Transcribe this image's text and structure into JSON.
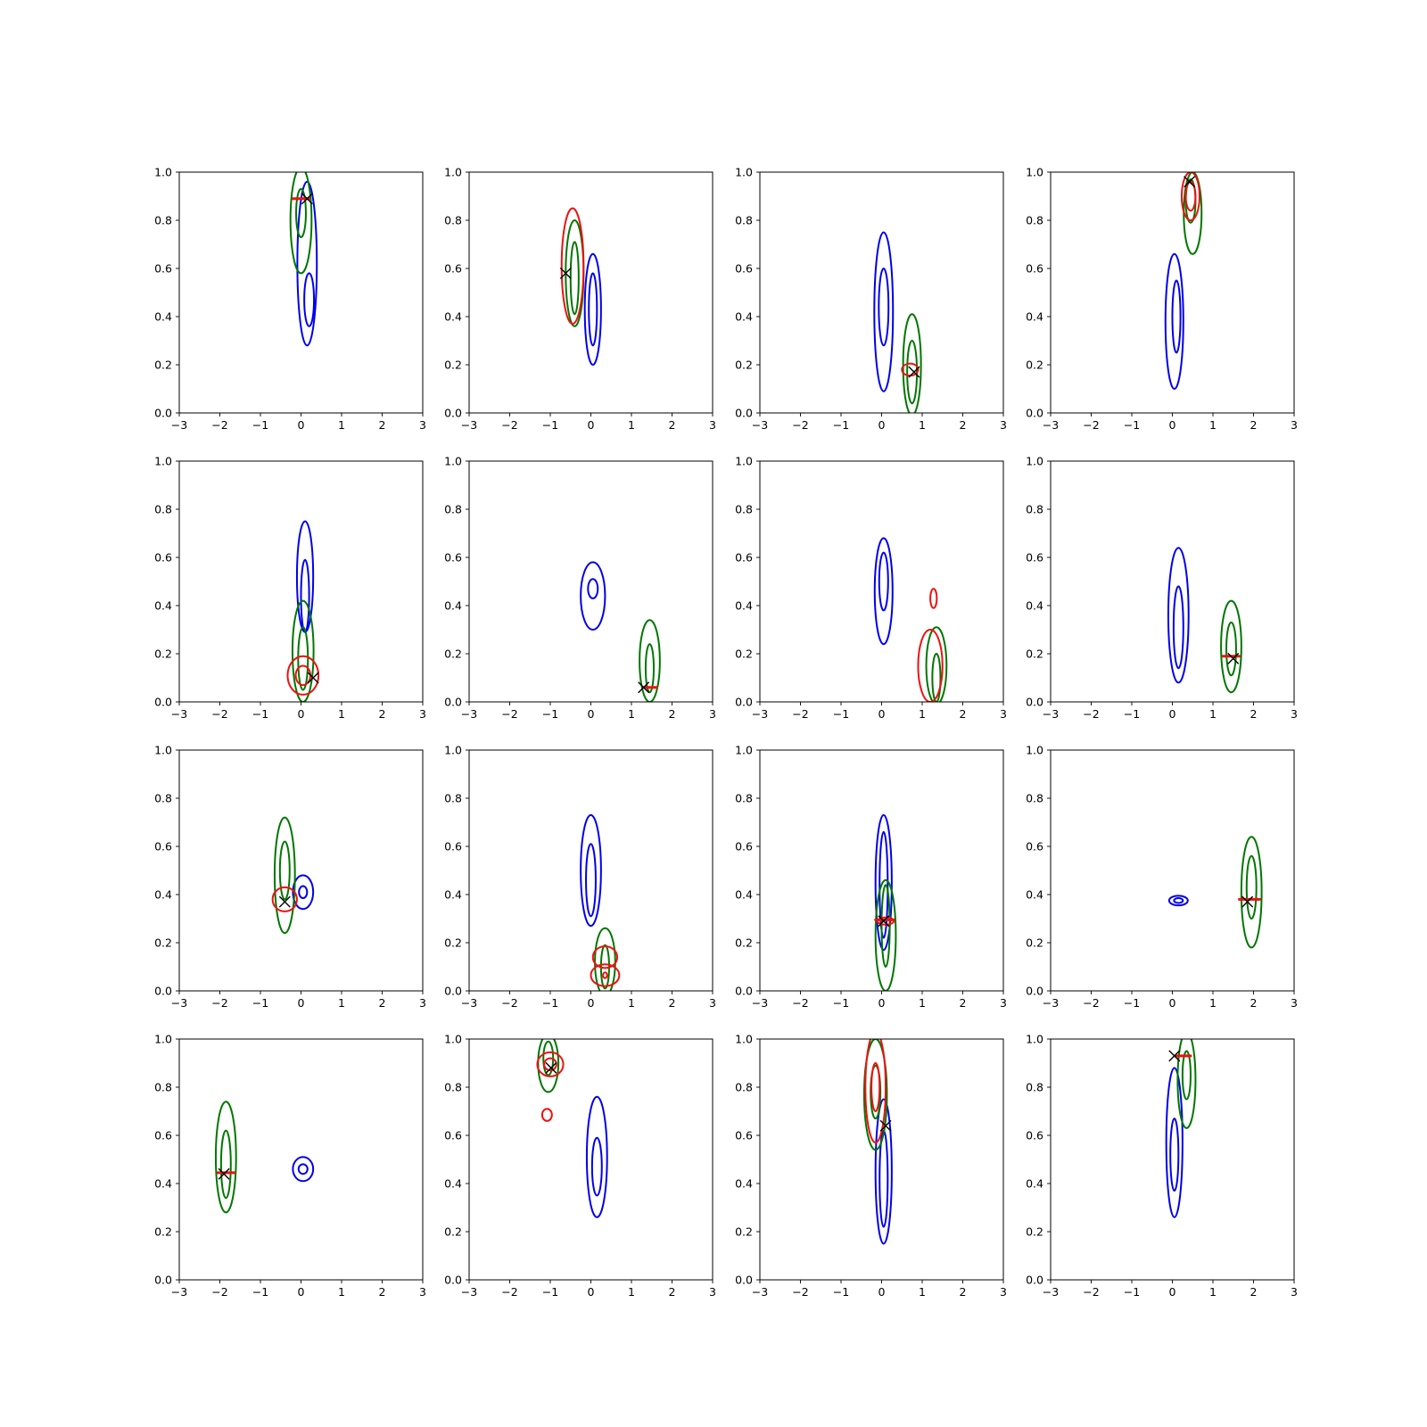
{
  "colors": {
    "blue": "#0000ee",
    "green": "#007700",
    "red": "#ee1111",
    "marker": "#000000"
  },
  "chart_data": [
    {
      "type": "contour",
      "xlim": [
        -3,
        3
      ],
      "ylim": [
        0,
        1
      ],
      "xticks": [
        "−3",
        "−2",
        "−1",
        "0",
        "1",
        "2",
        "3"
      ],
      "yticks": [
        "0.0",
        "0.2",
        "0.4",
        "0.6",
        "0.8",
        "1.0"
      ],
      "blue": [
        {
          "cx": 0.15,
          "cy": 0.62,
          "rx": 0.24,
          "ry": 0.34
        },
        {
          "cx": 0.2,
          "cy": 0.47,
          "rx": 0.12,
          "ry": 0.11
        }
      ],
      "green": [
        {
          "cx": 0.0,
          "cy": 0.8,
          "rx": 0.26,
          "ry": 0.22
        },
        {
          "cx": 0.0,
          "cy": 0.83,
          "rx": 0.12,
          "ry": 0.1
        }
      ],
      "red": [],
      "red_bar": {
        "x1": -0.2,
        "x2": 0.2,
        "y": 0.89
      },
      "marker": {
        "x": 0.15,
        "y": 0.89
      }
    },
    {
      "type": "contour",
      "xlim": [
        -3,
        3
      ],
      "ylim": [
        0,
        1
      ],
      "xticks": [
        "−3",
        "−2",
        "−1",
        "0",
        "1",
        "2",
        "3"
      ],
      "yticks": [
        "0.0",
        "0.2",
        "0.4",
        "0.6",
        "0.8",
        "1.0"
      ],
      "blue": [
        {
          "cx": 0.05,
          "cy": 0.43,
          "rx": 0.2,
          "ry": 0.23
        },
        {
          "cx": 0.05,
          "cy": 0.43,
          "rx": 0.1,
          "ry": 0.15
        }
      ],
      "green": [
        {
          "cx": -0.4,
          "cy": 0.58,
          "rx": 0.22,
          "ry": 0.22
        },
        {
          "cx": -0.4,
          "cy": 0.56,
          "rx": 0.1,
          "ry": 0.15
        }
      ],
      "red": [
        {
          "cx": -0.45,
          "cy": 0.61,
          "rx": 0.27,
          "ry": 0.24
        }
      ],
      "red_bar": null,
      "marker": {
        "x": -0.62,
        "y": 0.58
      }
    },
    {
      "type": "contour",
      "xlim": [
        -3,
        3
      ],
      "ylim": [
        0,
        1
      ],
      "xticks": [
        "−3",
        "−2",
        "−1",
        "0",
        "1",
        "2",
        "3"
      ],
      "yticks": [
        "0.0",
        "0.2",
        "0.4",
        "0.6",
        "0.8",
        "1.0"
      ],
      "blue": [
        {
          "cx": 0.05,
          "cy": 0.42,
          "rx": 0.23,
          "ry": 0.33
        },
        {
          "cx": 0.05,
          "cy": 0.44,
          "rx": 0.12,
          "ry": 0.16
        }
      ],
      "green": [
        {
          "cx": 0.75,
          "cy": 0.2,
          "rx": 0.22,
          "ry": 0.21
        },
        {
          "cx": 0.75,
          "cy": 0.17,
          "rx": 0.12,
          "ry": 0.13
        }
      ],
      "red": [
        {
          "cx": 0.7,
          "cy": 0.18,
          "rx": 0.2,
          "ry": 0.025
        }
      ],
      "red_bar": null,
      "marker": {
        "x": 0.8,
        "y": 0.17
      }
    },
    {
      "type": "contour",
      "xlim": [
        -3,
        3
      ],
      "ylim": [
        0,
        1
      ],
      "xticks": [
        "−3",
        "−2",
        "−1",
        "0",
        "1",
        "2",
        "3"
      ],
      "yticks": [
        "0.0",
        "0.2",
        "0.4",
        "0.6",
        "0.8",
        "1.0"
      ],
      "blue": [
        {
          "cx": 0.05,
          "cy": 0.38,
          "rx": 0.22,
          "ry": 0.28
        },
        {
          "cx": 0.1,
          "cy": 0.4,
          "rx": 0.1,
          "ry": 0.15
        }
      ],
      "green": [
        {
          "cx": 0.5,
          "cy": 0.83,
          "rx": 0.22,
          "ry": 0.17
        },
        {
          "cx": 0.45,
          "cy": 0.88,
          "rx": 0.12,
          "ry": 0.09
        }
      ],
      "red": [
        {
          "cx": 0.45,
          "cy": 0.9,
          "rx": 0.22,
          "ry": 0.1
        },
        {
          "cx": 0.45,
          "cy": 0.9,
          "rx": 0.12,
          "ry": 0.06
        }
      ],
      "red_bar": null,
      "marker": {
        "x": 0.42,
        "y": 0.96
      }
    },
    {
      "type": "contour",
      "xlim": [
        -3,
        3
      ],
      "ylim": [
        0,
        1
      ],
      "xticks": [
        "−3",
        "−2",
        "−1",
        "0",
        "1",
        "2",
        "3"
      ],
      "yticks": [
        "0.0",
        "0.2",
        "0.4",
        "0.6",
        "0.8",
        "1.0"
      ],
      "blue": [
        {
          "cx": 0.1,
          "cy": 0.52,
          "rx": 0.2,
          "ry": 0.23
        },
        {
          "cx": 0.1,
          "cy": 0.44,
          "rx": 0.1,
          "ry": 0.15
        }
      ],
      "green": [
        {
          "cx": 0.05,
          "cy": 0.21,
          "rx": 0.26,
          "ry": 0.21
        },
        {
          "cx": 0.05,
          "cy": 0.18,
          "rx": 0.12,
          "ry": 0.13
        }
      ],
      "red": [
        {
          "cx": 0.05,
          "cy": 0.11,
          "rx": 0.38,
          "ry": 0.08
        },
        {
          "cx": 0.05,
          "cy": 0.11,
          "rx": 0.18,
          "ry": 0.04
        }
      ],
      "red_bar": null,
      "marker": {
        "x": 0.3,
        "y": 0.1
      }
    },
    {
      "type": "contour",
      "xlim": [
        -3,
        3
      ],
      "ylim": [
        0,
        1
      ],
      "xticks": [
        "−3",
        "−2",
        "−1",
        "0",
        "1",
        "2",
        "3"
      ],
      "yticks": [
        "0.0",
        "0.2",
        "0.4",
        "0.6",
        "0.8",
        "1.0"
      ],
      "blue": [
        {
          "cx": 0.05,
          "cy": 0.44,
          "rx": 0.3,
          "ry": 0.14
        },
        {
          "cx": 0.05,
          "cy": 0.47,
          "rx": 0.12,
          "ry": 0.04
        }
      ],
      "green": [
        {
          "cx": 1.45,
          "cy": 0.17,
          "rx": 0.25,
          "ry": 0.17
        },
        {
          "cx": 1.45,
          "cy": 0.14,
          "rx": 0.1,
          "ry": 0.1
        }
      ],
      "red": [],
      "red_bar": {
        "x1": 1.3,
        "x2": 1.62,
        "y": 0.06
      },
      "marker": {
        "x": 1.3,
        "y": 0.06
      }
    },
    {
      "type": "contour",
      "xlim": [
        -3,
        3
      ],
      "ylim": [
        0,
        1
      ],
      "xticks": [
        "−3",
        "−2",
        "−1",
        "0",
        "1",
        "2",
        "3"
      ],
      "yticks": [
        "0.0",
        "0.2",
        "0.4",
        "0.6",
        "0.8",
        "1.0"
      ],
      "blue": [
        {
          "cx": 0.05,
          "cy": 0.46,
          "rx": 0.22,
          "ry": 0.22
        },
        {
          "cx": 0.05,
          "cy": 0.5,
          "rx": 0.11,
          "ry": 0.12
        }
      ],
      "green": [
        {
          "cx": 1.35,
          "cy": 0.15,
          "rx": 0.25,
          "ry": 0.16
        },
        {
          "cx": 1.35,
          "cy": 0.1,
          "rx": 0.1,
          "ry": 0.1
        }
      ],
      "red": [
        {
          "cx": 1.2,
          "cy": 0.15,
          "rx": 0.3,
          "ry": 0.15
        },
        {
          "cx": 1.28,
          "cy": 0.43,
          "rx": 0.08,
          "ry": 0.04
        }
      ],
      "red_bar": null,
      "marker": null
    },
    {
      "type": "contour",
      "xlim": [
        -3,
        3
      ],
      "ylim": [
        0,
        1
      ],
      "xticks": [
        "−3",
        "−2",
        "−1",
        "0",
        "1",
        "2",
        "3"
      ],
      "yticks": [
        "0.0",
        "0.2",
        "0.4",
        "0.6",
        "0.8",
        "1.0"
      ],
      "blue": [
        {
          "cx": 0.15,
          "cy": 0.36,
          "rx": 0.25,
          "ry": 0.28
        },
        {
          "cx": 0.15,
          "cy": 0.31,
          "rx": 0.12,
          "ry": 0.17
        }
      ],
      "green": [
        {
          "cx": 1.45,
          "cy": 0.23,
          "rx": 0.25,
          "ry": 0.19
        },
        {
          "cx": 1.45,
          "cy": 0.22,
          "rx": 0.12,
          "ry": 0.11
        }
      ],
      "red": [],
      "red_bar": {
        "x1": 1.25,
        "x2": 1.65,
        "y": 0.19
      },
      "marker": {
        "x": 1.5,
        "y": 0.18
      }
    },
    {
      "type": "contour",
      "xlim": [
        -3,
        3
      ],
      "ylim": [
        0,
        1
      ],
      "xticks": [
        "−3",
        "−2",
        "−1",
        "0",
        "1",
        "2",
        "3"
      ],
      "yticks": [
        "0.0",
        "0.2",
        "0.4",
        "0.6",
        "0.8",
        "1.0"
      ],
      "blue": [
        {
          "cx": 0.05,
          "cy": 0.41,
          "rx": 0.25,
          "ry": 0.07
        },
        {
          "cx": 0.05,
          "cy": 0.41,
          "rx": 0.1,
          "ry": 0.025
        }
      ],
      "green": [
        {
          "cx": -0.4,
          "cy": 0.48,
          "rx": 0.25,
          "ry": 0.24
        },
        {
          "cx": -0.4,
          "cy": 0.5,
          "rx": 0.12,
          "ry": 0.12
        }
      ],
      "red": [
        {
          "cx": -0.4,
          "cy": 0.38,
          "rx": 0.3,
          "ry": 0.05
        }
      ],
      "red_bar": null,
      "marker": {
        "x": -0.4,
        "y": 0.37
      }
    },
    {
      "type": "contour",
      "xlim": [
        -3,
        3
      ],
      "ylim": [
        0,
        1
      ],
      "xticks": [
        "−3",
        "−2",
        "−1",
        "0",
        "1",
        "2",
        "3"
      ],
      "yticks": [
        "0.0",
        "0.2",
        "0.4",
        "0.6",
        "0.8",
        "1.0"
      ],
      "blue": [
        {
          "cx": 0.0,
          "cy": 0.5,
          "rx": 0.25,
          "ry": 0.23
        },
        {
          "cx": 0.0,
          "cy": 0.46,
          "rx": 0.12,
          "ry": 0.15
        }
      ],
      "green": [
        {
          "cx": 0.35,
          "cy": 0.12,
          "rx": 0.25,
          "ry": 0.14
        },
        {
          "cx": 0.35,
          "cy": 0.1,
          "rx": 0.1,
          "ry": 0.09
        }
      ],
      "red": [
        {
          "cx": 0.35,
          "cy": 0.14,
          "rx": 0.3,
          "ry": 0.045
        },
        {
          "cx": 0.35,
          "cy": 0.065,
          "rx": 0.35,
          "ry": 0.045
        },
        {
          "cx": 0.35,
          "cy": 0.065,
          "rx": 0.05,
          "ry": 0.012
        }
      ],
      "red_bar": null,
      "marker": null
    },
    {
      "type": "contour",
      "xlim": [
        -3,
        3
      ],
      "ylim": [
        0,
        1
      ],
      "xticks": [
        "−3",
        "−2",
        "−1",
        "0",
        "1",
        "2",
        "3"
      ],
      "yticks": [
        "0.0",
        "0.2",
        "0.4",
        "0.6",
        "0.8",
        "1.0"
      ],
      "blue": [
        {
          "cx": 0.05,
          "cy": 0.45,
          "rx": 0.2,
          "ry": 0.28
        },
        {
          "cx": 0.05,
          "cy": 0.44,
          "rx": 0.1,
          "ry": 0.22
        }
      ],
      "green": [
        {
          "cx": 0.1,
          "cy": 0.23,
          "rx": 0.25,
          "ry": 0.23
        },
        {
          "cx": 0.1,
          "cy": 0.27,
          "rx": 0.1,
          "ry": 0.17
        }
      ],
      "red": [
        {
          "cx": 0.1,
          "cy": 0.29,
          "rx": 0.2,
          "ry": 0.015
        }
      ],
      "red_bar": {
        "x1": -0.15,
        "x2": 0.3,
        "y": 0.295
      },
      "marker": {
        "x": 0.05,
        "y": 0.29
      }
    },
    {
      "type": "contour",
      "xlim": [
        -3,
        3
      ],
      "ylim": [
        0,
        1
      ],
      "xticks": [
        "−3",
        "−2",
        "−1",
        "0",
        "1",
        "2",
        "3"
      ],
      "yticks": [
        "0.0",
        "0.2",
        "0.4",
        "0.6",
        "0.8",
        "1.0"
      ],
      "blue": [
        {
          "cx": 0.15,
          "cy": 0.375,
          "rx": 0.23,
          "ry": 0.02
        },
        {
          "cx": 0.15,
          "cy": 0.375,
          "rx": 0.11,
          "ry": 0.01
        }
      ],
      "green": [
        {
          "cx": 1.95,
          "cy": 0.41,
          "rx": 0.25,
          "ry": 0.23
        },
        {
          "cx": 1.95,
          "cy": 0.43,
          "rx": 0.12,
          "ry": 0.13
        }
      ],
      "red": [],
      "red_bar": {
        "x1": 1.65,
        "x2": 2.15,
        "y": 0.38
      },
      "marker": {
        "x": 1.85,
        "y": 0.37
      }
    },
    {
      "type": "contour",
      "xlim": [
        -3,
        3
      ],
      "ylim": [
        0,
        1
      ],
      "xticks": [
        "−3",
        "−2",
        "−1",
        "0",
        "1",
        "2",
        "3"
      ],
      "yticks": [
        "0.0",
        "0.2",
        "0.4",
        "0.6",
        "0.8",
        "1.0"
      ],
      "blue": [
        {
          "cx": 0.05,
          "cy": 0.46,
          "rx": 0.25,
          "ry": 0.05
        },
        {
          "cx": 0.05,
          "cy": 0.46,
          "rx": 0.11,
          "ry": 0.02
        }
      ],
      "green": [
        {
          "cx": -1.85,
          "cy": 0.51,
          "rx": 0.25,
          "ry": 0.23
        },
        {
          "cx": -1.85,
          "cy": 0.48,
          "rx": 0.12,
          "ry": 0.14
        }
      ],
      "red": [],
      "red_bar": {
        "x1": -2.05,
        "x2": -1.65,
        "y": 0.445
      },
      "marker": {
        "x": -1.9,
        "y": 0.44
      }
    },
    {
      "type": "contour",
      "xlim": [
        -3,
        3
      ],
      "ylim": [
        0,
        1
      ],
      "xticks": [
        "−3",
        "−2",
        "−1",
        "0",
        "1",
        "2",
        "3"
      ],
      "yticks": [
        "0.0",
        "0.2",
        "0.4",
        "0.6",
        "0.8",
        "1.0"
      ],
      "blue": [
        {
          "cx": 0.15,
          "cy": 0.51,
          "rx": 0.25,
          "ry": 0.25
        },
        {
          "cx": 0.15,
          "cy": 0.47,
          "rx": 0.12,
          "ry": 0.12
        }
      ],
      "green": [
        {
          "cx": -1.05,
          "cy": 0.9,
          "rx": 0.25,
          "ry": 0.12
        },
        {
          "cx": -1.05,
          "cy": 0.92,
          "rx": 0.12,
          "ry": 0.07
        }
      ],
      "red": [
        {
          "cx": -1.0,
          "cy": 0.895,
          "rx": 0.32,
          "ry": 0.05
        },
        {
          "cx": -1.0,
          "cy": 0.895,
          "rx": 0.15,
          "ry": 0.025
        },
        {
          "cx": -1.08,
          "cy": 0.685,
          "rx": 0.12,
          "ry": 0.025
        }
      ],
      "red_bar": null,
      "marker": {
        "x": -0.98,
        "y": 0.88
      }
    },
    {
      "type": "contour",
      "xlim": [
        -3,
        3
      ],
      "ylim": [
        0,
        1
      ],
      "xticks": [
        "−3",
        "−2",
        "−1",
        "0",
        "1",
        "2",
        "3"
      ],
      "yticks": [
        "0.0",
        "0.2",
        "0.4",
        "0.6",
        "0.8",
        "1.0"
      ],
      "blue": [
        {
          "cx": 0.05,
          "cy": 0.45,
          "rx": 0.2,
          "ry": 0.3
        },
        {
          "cx": 0.05,
          "cy": 0.42,
          "rx": 0.1,
          "ry": 0.2
        }
      ],
      "green": [
        {
          "cx": -0.15,
          "cy": 0.77,
          "rx": 0.28,
          "ry": 0.23
        },
        {
          "cx": -0.15,
          "cy": 0.78,
          "rx": 0.12,
          "ry": 0.11
        }
      ],
      "red": [
        {
          "cx": -0.15,
          "cy": 0.8,
          "rx": 0.25,
          "ry": 0.23
        },
        {
          "cx": -0.15,
          "cy": 0.8,
          "rx": 0.1,
          "ry": 0.1
        }
      ],
      "red_bar": null,
      "marker": {
        "x": 0.1,
        "y": 0.64
      }
    },
    {
      "type": "contour",
      "xlim": [
        -3,
        3
      ],
      "ylim": [
        0,
        1
      ],
      "xticks": [
        "−3",
        "−2",
        "−1",
        "0",
        "1",
        "2",
        "3"
      ],
      "yticks": [
        "0.0",
        "0.2",
        "0.4",
        "0.6",
        "0.8",
        "1.0"
      ],
      "blue": [
        {
          "cx": 0.05,
          "cy": 0.57,
          "rx": 0.2,
          "ry": 0.31
        },
        {
          "cx": 0.05,
          "cy": 0.52,
          "rx": 0.1,
          "ry": 0.15
        }
      ],
      "green": [
        {
          "cx": 0.35,
          "cy": 0.83,
          "rx": 0.22,
          "ry": 0.2
        },
        {
          "cx": 0.35,
          "cy": 0.85,
          "rx": 0.1,
          "ry": 0.1
        }
      ],
      "red": [],
      "red_bar": {
        "x1": 0.1,
        "x2": 0.45,
        "y": 0.93
      },
      "marker": {
        "x": 0.05,
        "y": 0.93
      }
    }
  ]
}
